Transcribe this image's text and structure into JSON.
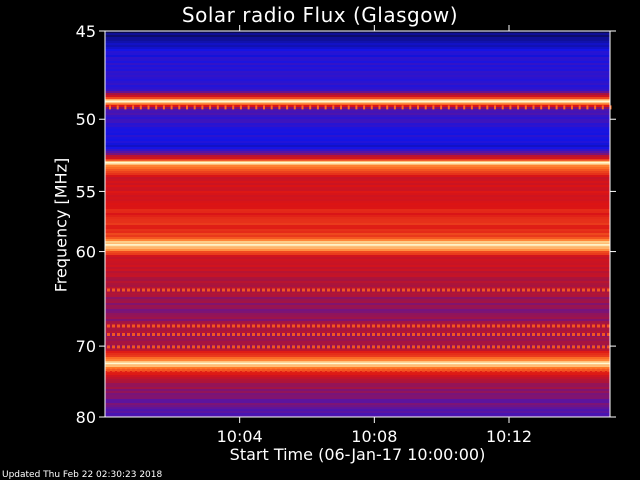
{
  "title": "Solar radio Flux (Glasgow)",
  "footer": "Updated Thu Feb 22 02:30:23 2018",
  "chart_data": {
    "type": "heatmap",
    "title": "Solar radio Flux (Glasgow)",
    "xlabel": "Start Time (06-Jan-17 10:00:00)",
    "ylabel": "Frequency [MHz]",
    "ylim": [
      80,
      45
    ],
    "y_scale": "reciprocal",
    "y_ticks": [
      45,
      50,
      55,
      60,
      70,
      80
    ],
    "x_ticks": [
      "10:04",
      "10:08",
      "10:12"
    ],
    "xlim": [
      "10:00",
      "10:15"
    ],
    "colormap": "blue-red-yellow",
    "bright_bands_mhz": [
      48.9,
      52.9,
      59.4,
      72.2
    ],
    "band_profile": [
      {
        "mhz": 45.0,
        "level": 0.05
      },
      {
        "mhz": 46.0,
        "level": 0.2
      },
      {
        "mhz": 48.3,
        "level": 0.28
      },
      {
        "mhz": 48.9,
        "level": 1.0
      },
      {
        "mhz": 49.4,
        "level": 0.3
      },
      {
        "mhz": 50.5,
        "level": 0.25
      },
      {
        "mhz": 51.8,
        "level": 0.18
      },
      {
        "mhz": 52.4,
        "level": 0.5
      },
      {
        "mhz": 52.9,
        "level": 0.95
      },
      {
        "mhz": 54.0,
        "level": 0.62
      },
      {
        "mhz": 56.5,
        "level": 0.66
      },
      {
        "mhz": 58.5,
        "level": 0.72
      },
      {
        "mhz": 59.4,
        "level": 1.0
      },
      {
        "mhz": 60.5,
        "level": 0.62
      },
      {
        "mhz": 62.0,
        "level": 0.55
      },
      {
        "mhz": 64.0,
        "level": 0.5
      },
      {
        "mhz": 66.0,
        "level": 0.42
      },
      {
        "mhz": 68.0,
        "level": 0.5
      },
      {
        "mhz": 70.0,
        "level": 0.45
      },
      {
        "mhz": 72.2,
        "level": 1.0
      },
      {
        "mhz": 74.0,
        "level": 0.55
      },
      {
        "mhz": 76.0,
        "level": 0.42
      },
      {
        "mhz": 78.0,
        "level": 0.38
      },
      {
        "mhz": 80.0,
        "level": 0.32
      }
    ],
    "stripe_rows_mhz": [
      63.7,
      67.6,
      68.6,
      70.1,
      73.1
    ]
  },
  "colors": {
    "background": "#000000",
    "text": "#ffffff",
    "axis": "#ffffff"
  }
}
